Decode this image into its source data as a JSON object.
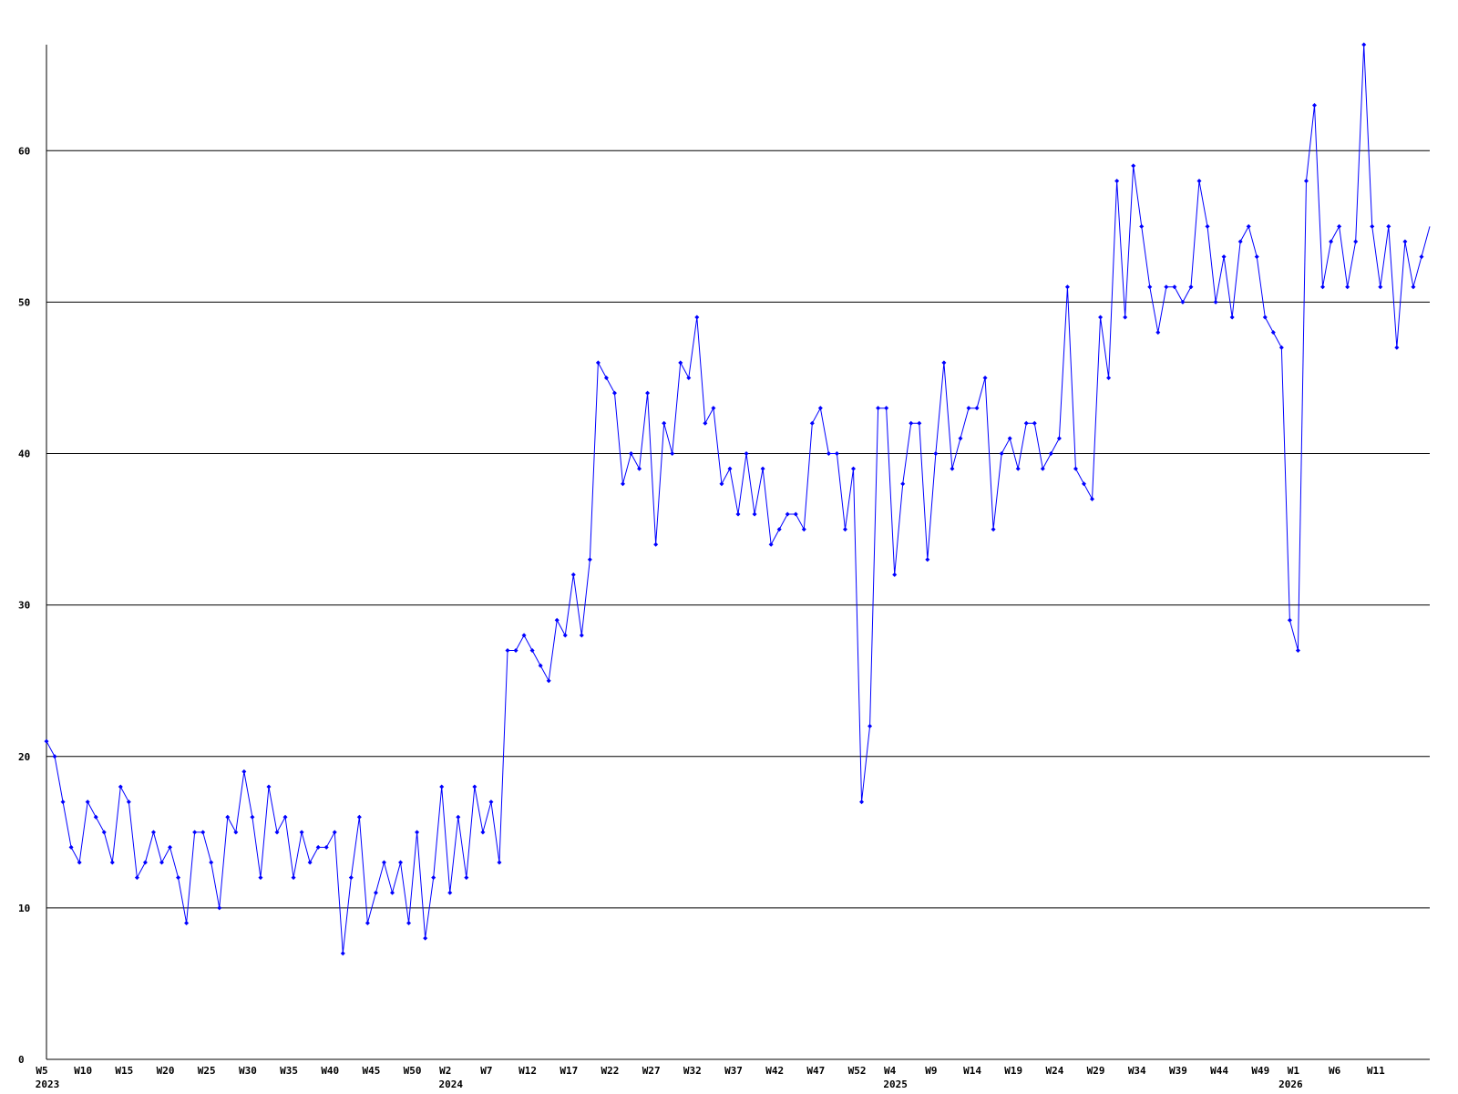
{
  "chart_data": {
    "type": "line",
    "categories": [
      "W5",
      null,
      null,
      null,
      null,
      "W10",
      null,
      null,
      null,
      null,
      "W15",
      null,
      null,
      null,
      null,
      "W20",
      null,
      null,
      null,
      null,
      "W25",
      null,
      null,
      null,
      null,
      "W30",
      null,
      null,
      null,
      null,
      "W35",
      null,
      null,
      null,
      null,
      "W40",
      null,
      null,
      null,
      null,
      "W45",
      null,
      null,
      null,
      null,
      "W50",
      null,
      null,
      null,
      "W2",
      null,
      null,
      null,
      null,
      "W7",
      null,
      null,
      null,
      null,
      "W12",
      null,
      null,
      null,
      null,
      "W17",
      null,
      null,
      null,
      null,
      "W22",
      null,
      null,
      null,
      null,
      "W27",
      null,
      null,
      null,
      null,
      "W32",
      null,
      null,
      null,
      null,
      "W37",
      null,
      null,
      null,
      null,
      "W42",
      null,
      null,
      null,
      null,
      "W47",
      null,
      null,
      null,
      null,
      "W52",
      null,
      null,
      null,
      "W4",
      null,
      null,
      null,
      null,
      "W9",
      null,
      null,
      null,
      null,
      "W14",
      null,
      null,
      null,
      null,
      "W19",
      null,
      null,
      null,
      null,
      "W24",
      null,
      null,
      null,
      null,
      "W29",
      null,
      null,
      null,
      null,
      "W34",
      null,
      null,
      null,
      null,
      "W39",
      null,
      null,
      null,
      null,
      "W44",
      null,
      null,
      null,
      null,
      "W49",
      null,
      null,
      null,
      "W1",
      null,
      null,
      null,
      null,
      "W6",
      null,
      null,
      null,
      null,
      "W11",
      null,
      null,
      null,
      null,
      null,
      null
    ],
    "year_labels": [
      "2023",
      null,
      null,
      null,
      null,
      null,
      null,
      null,
      null,
      null,
      null,
      null,
      null,
      null,
      null,
      null,
      null,
      null,
      null,
      null,
      null,
      null,
      null,
      null,
      null,
      null,
      null,
      null,
      null,
      null,
      null,
      null,
      null,
      null,
      null,
      null,
      null,
      null,
      null,
      null,
      null,
      null,
      null,
      null,
      null,
      null,
      null,
      null,
      null,
      "2024",
      null,
      null,
      null,
      null,
      null,
      null,
      null,
      null,
      null,
      null,
      null,
      null,
      null,
      null,
      null,
      null,
      null,
      null,
      null,
      null,
      null,
      null,
      null,
      null,
      null,
      null,
      null,
      null,
      null,
      null,
      null,
      null,
      null,
      null,
      null,
      null,
      null,
      null,
      null,
      null,
      null,
      null,
      null,
      null,
      null,
      null,
      null,
      null,
      null,
      null,
      null,
      null,
      null,
      "2025",
      null,
      null,
      null,
      null,
      null,
      null,
      null,
      null,
      null,
      null,
      null,
      null,
      null,
      null,
      null,
      null,
      null,
      null,
      null,
      null,
      null,
      null,
      null,
      null,
      null,
      null,
      null,
      null,
      null,
      null,
      null,
      null,
      null,
      null,
      null,
      null,
      null,
      null,
      null,
      null,
      null,
      null,
      null,
      null,
      null,
      null,
      null,
      "2026",
      null,
      null,
      null,
      null,
      null,
      null,
      null,
      null,
      null,
      null,
      null,
      null,
      null,
      null,
      null,
      null
    ],
    "series": [
      {
        "color": "#0000ff",
        "values": [
          21,
          20,
          17,
          14,
          13,
          17,
          16,
          15,
          13,
          18,
          17,
          12,
          13,
          15,
          13,
          14,
          12,
          9,
          15,
          15,
          13,
          10,
          16,
          15,
          19,
          16,
          12,
          18,
          15,
          16,
          12,
          15,
          13,
          14,
          14,
          15,
          7,
          12,
          16,
          9,
          11,
          13,
          11,
          13,
          9,
          15,
          8,
          12,
          18,
          11,
          16,
          12,
          18,
          15,
          17,
          13,
          27,
          27,
          28,
          27,
          26,
          25,
          29,
          28,
          32,
          28,
          33,
          46,
          45,
          44,
          38,
          40,
          39,
          44,
          34,
          42,
          40,
          46,
          45,
          49,
          42,
          43,
          38,
          39,
          36,
          40,
          36,
          39,
          34,
          35,
          36,
          36,
          35,
          42,
          43,
          40,
          40,
          35,
          39,
          17,
          22,
          43,
          43,
          32,
          38,
          42,
          42,
          33,
          40,
          46,
          39,
          41,
          43,
          43,
          45,
          35,
          40,
          41,
          39,
          42,
          42,
          39,
          40,
          41,
          51,
          39,
          38,
          37,
          49,
          45,
          58,
          49,
          59,
          55,
          51,
          48,
          51,
          51,
          50,
          51,
          58,
          55,
          50,
          53,
          49,
          54,
          55,
          53,
          49,
          48,
          47,
          29,
          27,
          58,
          63,
          51,
          54,
          55,
          51,
          54,
          67,
          55,
          51,
          55,
          47,
          54,
          51,
          53,
          55
        ]
      }
    ],
    "ylim": [
      0,
      67
    ],
    "yticks": [
      0,
      10,
      20,
      30,
      40,
      50,
      60
    ],
    "grid": true
  }
}
